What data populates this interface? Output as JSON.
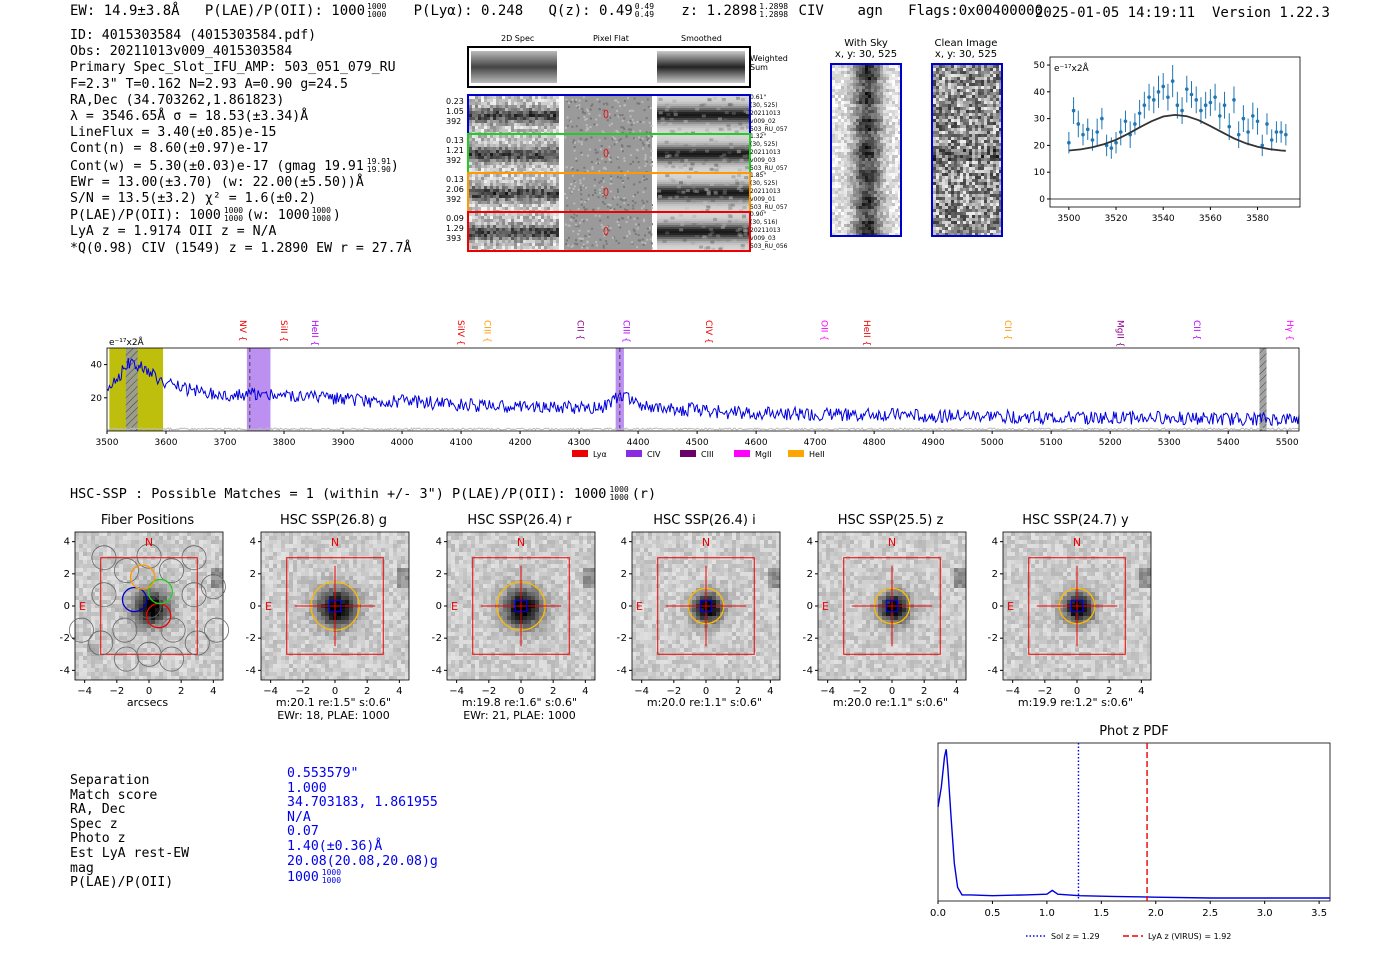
{
  "header": {
    "ew": "EW: 14.9±3.8Å",
    "plae": "P(LAE)/P(OII): 1000",
    "plae_hi": "1000",
    "plae_lo": "1000",
    "plya": "P(Lyα): 0.248",
    "qz": "Q(z): 0.49",
    "qz_hi": "0.49",
    "qz_lo": "0.49",
    "z": "z: 1.2898",
    "z_hi": "1.2898",
    "z_lo": "1.2898",
    "line": "CIV",
    "agn": "agn",
    "flags": "Flags:0x00400000",
    "timestamp": "2025-01-05 14:19:11",
    "version": "Version 1.22.3"
  },
  "info": {
    "lines": [
      "ID: 4015303584 (4015303584.pdf)",
      "Obs: 20211013v009_4015303584",
      "Primary Spec_Slot_IFU_AMP: 503_051_079_RU",
      "F=2.3\"  T=0.162  N=2.93  A=0.90  g=24.5",
      "RA,Dec (34.703262,1.861823)",
      "λ = 3546.65Å  σ = 18.53(±3.34)Å",
      "LineFlux = 3.40(±0.85)e-15",
      "Cont(n) = 8.60(±0.97)e-17",
      "Cont(w) = 5.30(±0.03)e-17 (gmag 19.91",
      "EWr = 13.00(±3.70) (w: 22.00(±5.50))Å",
      "S/N = 13.5(±3.2)  χ² = 1.6(±0.2)",
      "P(LAE)/P(OII): 1000",
      "LyA z = 1.9174  OII z = N/A",
      "*Q(0.98) CIV (1549) z = 1.2890  EW r = 27.7Å"
    ],
    "gmag_hi": "19.91",
    "gmag_lo": "19.90",
    "plae_hi": "1000",
    "plae_lo": "1000",
    "plae_w": "(w: 1000",
    "plae_w_hi": "1000",
    "plae_w_lo": "1000",
    "plae_w_close": ")"
  },
  "cutouts": {
    "col_titles": [
      "2D Spec",
      "Pixel Flat",
      "Smoothed"
    ],
    "weighted_sum": "Weighted\nSum",
    "rows": [
      {
        "left": [
          "0.23",
          "1.05",
          "392"
        ],
        "color": "#0000cc",
        "right": [
          "0.61\"",
          "(30, 525)",
          "20211013",
          "v009_02",
          "503_RU_057"
        ]
      },
      {
        "left": [
          "0.13",
          "1.21",
          "392"
        ],
        "color": "#22cc22",
        "right": [
          "1.32\"",
          "(30, 525)",
          "20211013",
          "v009_03",
          "503_RU_057"
        ]
      },
      {
        "left": [
          "0.13",
          "2.06",
          "392"
        ],
        "color": "#ff9900",
        "right": [
          "1.85\"",
          "(30, 525)",
          "20211013",
          "v009_01",
          "503_RU_057"
        ]
      },
      {
        "left": [
          "0.09",
          "1.29",
          "393"
        ],
        "color": "#ee0000",
        "right": [
          "0.90\"",
          "(30, 516)",
          "20211013",
          "v009_03",
          "503_RU_056"
        ]
      }
    ],
    "with_sky_title": "With Sky",
    "with_sky_sub": "x, y: 30, 525",
    "clean_title": "Clean Image",
    "clean_sub": "x, y: 30, 525"
  },
  "fit_plot": {
    "ylabel": "e⁻¹⁷x2Å"
  },
  "spectrum": {
    "ylabel": "e⁻¹⁷x2Å",
    "line_labels": [
      {
        "name": "NV",
        "wave": 3720.0,
        "color": "#ee0000"
      },
      {
        "name": "SiII",
        "wave": 3790.0,
        "color": "#ee0000"
      },
      {
        "name": "HeII",
        "wave": 3842.0,
        "color": "#b000ff"
      },
      {
        "name": "SiIV",
        "wave": 4090.0,
        "color": "#ee0000"
      },
      {
        "name": "CIII",
        "wave": 4135.0,
        "color": "#ff9900"
      },
      {
        "name": "CII",
        "wave": 4292.0,
        "color": "#8b008b"
      },
      {
        "name": "CIII",
        "wave": 4370.0,
        "color": "#b000ff"
      },
      {
        "name": "CIV",
        "wave": 4510.0,
        "color": "#ee0000"
      },
      {
        "name": "OII",
        "wave": 4706.0,
        "color": "#ff00ff"
      },
      {
        "name": "HeII",
        "wave": 4778.0,
        "color": "#ee0000"
      },
      {
        "name": "CII",
        "wave": 5017.0,
        "color": "#ff9900"
      },
      {
        "name": "MgII",
        "wave": 5207.0,
        "color": "#8b008b"
      },
      {
        "name": "CII",
        "wave": 5337.0,
        "color": "#b000ff"
      },
      {
        "name": "Hγ",
        "wave": 5495.0,
        "color": "#ff00ff"
      }
    ],
    "legend": [
      {
        "label": "Lyα",
        "color": "#ee0000"
      },
      {
        "label": "CIV",
        "color": "#8a2be2"
      },
      {
        "label": "CIII",
        "color": "#6a006a"
      },
      {
        "label": "MgII",
        "color": "#ff00ff"
      },
      {
        "label": "HeII",
        "color": "#ffa500"
      }
    ]
  },
  "hsc": {
    "title": "HSC-SSP : Possible Matches = 1 (within +/- 3\")  P(LAE)/P(OII): 1000",
    "title_hi": "1000",
    "title_lo": "1000",
    "title_tail": "(r)",
    "panels": [
      {
        "title": "Fiber Positions",
        "cap1": "arcsecs",
        "cap2": ""
      },
      {
        "title": "HSC SSP(26.8) g",
        "cap1": "m:20.1  re:1.5\"  s:0.6\"",
        "cap2": "EWr: 18, PLAE: 1000"
      },
      {
        "title": "HSC SSP(26.4) r",
        "cap1": "m:19.8  re:1.6\"  s:0.6\"",
        "cap2": "EWr: 21, PLAE: 1000"
      },
      {
        "title": "HSC SSP(26.4) i",
        "cap1": "m:20.0  re:1.1\"  s:0.6\"",
        "cap2": ""
      },
      {
        "title": "HSC SSP(25.5) z",
        "cap1": "m:20.0  re:1.1\"  s:0.6\"",
        "cap2": ""
      },
      {
        "title": "HSC SSP(24.7) y",
        "cap1": "m:19.9  re:1.2\"  s:0.6\"",
        "cap2": ""
      }
    ],
    "north": "N",
    "east": "E",
    "ticks": [
      "4",
      "2",
      "0",
      "−2",
      "−4"
    ],
    "xticks": [
      "−4",
      "−2",
      "0",
      "2",
      "4"
    ]
  },
  "match": {
    "keys": [
      "Separation",
      "Match score",
      "RA, Dec",
      "Spec z",
      "Photo z",
      "Est LyA rest-EW",
      "mag",
      "P(LAE)/P(OII)"
    ],
    "values": [
      "0.553579\"",
      "1.000",
      "34.703183, 1.861955",
      "N/A",
      "0.07",
      "1.40(±0.36)Å",
      "20.08(20.08,20.08)g",
      "1000"
    ],
    "plae_hi": "1000",
    "plae_lo": "1000"
  },
  "photz": {
    "title": "Phot z PDF",
    "legend_sol": "Sol z = 1.29",
    "legend_lya": "LyA z (VIRUS) = 1.92"
  },
  "chart_data": [
    {
      "type": "line",
      "title": "Line fit",
      "xlabel": "",
      "ylabel": "e⁻¹⁷x2Å",
      "xlim": [
        3492,
        3598
      ],
      "ylim": [
        -3,
        53
      ],
      "xticks": [
        3500,
        3520,
        3540,
        3560,
        3580
      ],
      "yticks": [
        0,
        10,
        20,
        30,
        40,
        50
      ],
      "series": [
        {
          "name": "data",
          "x": [
            3500,
            3502,
            3504,
            3506,
            3508,
            3510,
            3512,
            3514,
            3516,
            3518,
            3520,
            3522,
            3524,
            3526,
            3528,
            3530,
            3532,
            3534,
            3536,
            3538,
            3540,
            3542,
            3544,
            3546,
            3548,
            3550,
            3552,
            3554,
            3556,
            3558,
            3560,
            3562,
            3564,
            3566,
            3568,
            3570,
            3572,
            3574,
            3576,
            3578,
            3580,
            3582,
            3584,
            3586,
            3588,
            3590,
            3592
          ],
          "y": [
            21,
            33,
            28,
            24,
            26,
            22,
            25,
            30,
            20,
            19,
            21,
            25,
            29,
            24,
            28,
            32,
            35,
            38,
            37,
            40,
            42,
            38,
            44,
            35,
            33,
            41,
            39,
            37,
            33,
            35,
            36,
            38,
            31,
            35,
            27,
            37,
            24,
            30,
            25,
            31,
            29,
            20,
            28,
            22,
            25,
            25,
            24
          ],
          "yerr": [
            4,
            5,
            5,
            4,
            4,
            4,
            5,
            4,
            4,
            4,
            4,
            5,
            4,
            5,
            4,
            5,
            5,
            5,
            5,
            6,
            5,
            5,
            6,
            5,
            5,
            5,
            5,
            5,
            5,
            5,
            5,
            5,
            5,
            5,
            5,
            5,
            5,
            5,
            5,
            5,
            5,
            4,
            4,
            4,
            4,
            4,
            4
          ]
        },
        {
          "name": "fit",
          "x": [
            3500,
            3505,
            3510,
            3515,
            3520,
            3525,
            3530,
            3535,
            3540,
            3545,
            3550,
            3555,
            3560,
            3565,
            3570,
            3575,
            3580,
            3585,
            3590,
            3592
          ],
          "y": [
            18.1,
            18.5,
            19.3,
            20.5,
            22.1,
            24.3,
            26.7,
            29.0,
            30.8,
            31.4,
            30.9,
            29.4,
            27.2,
            24.9,
            22.6,
            20.8,
            19.5,
            18.6,
            18.1,
            18.0
          ]
        }
      ]
    },
    {
      "type": "line",
      "title": "Spectrum",
      "xlabel": "",
      "ylabel": "e⁻¹⁷x2Å",
      "xlim": [
        3500,
        5520
      ],
      "ylim": [
        0,
        50
      ],
      "xticks": [
        3500,
        3600,
        3700,
        3800,
        3900,
        4000,
        4100,
        4200,
        4300,
        4400,
        4500,
        4600,
        4700,
        4800,
        4900,
        5000,
        5100,
        5200,
        5300,
        5400,
        5500
      ],
      "yticks": [
        20,
        40
      ],
      "regions": [
        {
          "x0": 3504,
          "x1": 3595,
          "color": "#bbbb00"
        },
        {
          "x0": 3532,
          "x1": 3552,
          "color": "#888888",
          "hatch": true
        },
        {
          "x0": 3737,
          "x1": 3777,
          "color": "#b78af0"
        },
        {
          "x0": 4362,
          "x1": 4376,
          "color": "#b78af0"
        },
        {
          "x0": 5453,
          "x1": 5465,
          "color": "#888888",
          "hatch": true
        }
      ],
      "vlines": [
        3742,
        4369
      ],
      "series": [
        {
          "name": "flux",
          "x": [
            3500,
            3520,
            3530,
            3540,
            3550,
            3560,
            3580,
            3600,
            3650,
            3700,
            3750,
            3800,
            3850,
            3900,
            3950,
            4000,
            4050,
            4100,
            4150,
            4200,
            4250,
            4300,
            4350,
            4370,
            4400,
            4450,
            4500,
            4550,
            4600,
            4700,
            4800,
            4900,
            5000,
            5100,
            5200,
            5300,
            5400,
            5500,
            5520
          ],
          "y": [
            26,
            33,
            38,
            42,
            40,
            38,
            34,
            28,
            24,
            22,
            22,
            21,
            20,
            19,
            18,
            18,
            17,
            16,
            15,
            15,
            14,
            14,
            15,
            22,
            16,
            13,
            13,
            11,
            11,
            10,
            10,
            9,
            9,
            8,
            8,
            8,
            7,
            7,
            7
          ]
        }
      ]
    },
    {
      "type": "line",
      "title": "Phot z PDF",
      "xlabel": "",
      "ylabel": "",
      "xlim": [
        0.0,
        3.6
      ],
      "ylim": [
        0,
        1
      ],
      "xticks": [
        0.0,
        0.5,
        1.0,
        1.5,
        2.0,
        2.5,
        3.0,
        3.5
      ],
      "vlines": [
        {
          "x": 1.29,
          "label": "Sol z = 1.29",
          "style": "dotted",
          "color": "#0000ee"
        },
        {
          "x": 1.92,
          "label": "LyA z (VIRUS) = 1.92",
          "style": "dashed",
          "color": "#ee0000"
        }
      ],
      "series": [
        {
          "name": "pdf",
          "x": [
            0.0,
            0.03,
            0.06,
            0.075,
            0.09,
            0.12,
            0.15,
            0.18,
            0.22,
            0.3,
            0.5,
            0.8,
            1.0,
            1.05,
            1.1,
            1.3,
            1.6,
            2.0,
            2.5,
            3.0,
            3.6
          ],
          "y": [
            0.62,
            0.75,
            0.95,
            1.0,
            0.88,
            0.55,
            0.25,
            0.09,
            0.04,
            0.04,
            0.035,
            0.04,
            0.045,
            0.07,
            0.045,
            0.035,
            0.03,
            0.025,
            0.02,
            0.02,
            0.02
          ]
        }
      ]
    }
  ]
}
